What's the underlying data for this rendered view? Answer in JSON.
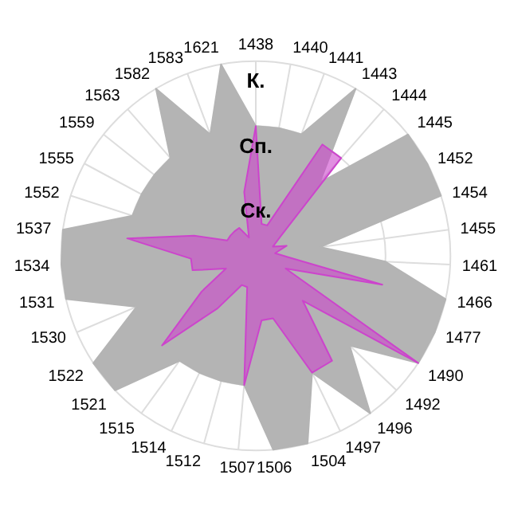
{
  "chart_data": {
    "type": "radar",
    "relative": false,
    "categories": [
      "1438",
      "1440",
      "1441",
      "1443",
      "1444",
      "1445",
      "1452",
      "1454",
      "1455",
      "1461",
      "1466",
      "1477",
      "1490",
      "1492",
      "1496",
      "1497",
      "1504",
      "1506",
      "1507",
      "1512",
      "1514",
      "1515",
      "1521",
      "1522",
      "1530",
      "1531",
      "1534",
      "1537",
      "1552",
      "1555",
      "1559",
      "1563",
      "1582",
      "1583",
      "1621"
    ],
    "ylim": [
      0,
      3
    ],
    "yticks": [
      {
        "value": 1,
        "label": "Ск."
      },
      {
        "value": 2,
        "label": "Сп."
      },
      {
        "value": 3,
        "label": "К."
      }
    ],
    "grid": true,
    "marker": "none",
    "series": [
      {
        "color": "#b4b4b4",
        "values": [
          2,
          2,
          2,
          3,
          1.5,
          3,
          3,
          3,
          1,
          2,
          3,
          3,
          3,
          2,
          3,
          2,
          3,
          3,
          2,
          2,
          2,
          2,
          3,
          3,
          2,
          3,
          3,
          3,
          2,
          2,
          2,
          2,
          3,
          2,
          3
        ]
      },
      {
        "color": "#cc44cc",
        "values": [
          2,
          0.5,
          0.5,
          2,
          2,
          0.5,
          0.3,
          0.5,
          0.3,
          0.5,
          2,
          0.5,
          3,
          1,
          2,
          2,
          1,
          1,
          2,
          0.5,
          0.5,
          1,
          2,
          1,
          0.5,
          1,
          1,
          2,
          1,
          0.5,
          0.5,
          0.5,
          0.5,
          0.3,
          1
        ]
      }
    ]
  }
}
